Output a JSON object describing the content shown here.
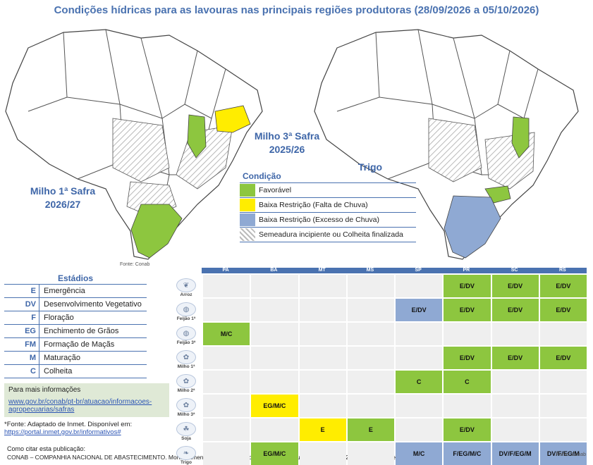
{
  "title": "Condições hídricas para as lavouras nas principais regiões produtoras (28/09/2026 a 05/10/2026)",
  "maps": {
    "left_label_1": "Milho 1ª Safra",
    "left_label_2": "2026/27",
    "center_label_1": "Milho 3ª Safra",
    "center_label_2": "2025/26",
    "right_label": "Trigo",
    "fonte": "Fonte: Conab"
  },
  "legend": {
    "title": "Condição",
    "items": [
      {
        "label": "Favorável",
        "color": "#8dc63f"
      },
      {
        "label": "Baixa Restrição (Falta de Chuva)",
        "color": "#ffed00"
      },
      {
        "label": "Baixa Restrição (Excesso de Chuva)",
        "color": "#8fa9d3"
      },
      {
        "label": "Semeadura incipiente ou Colheita finalizada",
        "color": "hatch"
      }
    ]
  },
  "estadios": {
    "title": "Estádios",
    "items": [
      {
        "code": "E",
        "desc": "Emergência"
      },
      {
        "code": "DV",
        "desc": "Desenvolvimento Vegetativo"
      },
      {
        "code": "F",
        "desc": "Floração"
      },
      {
        "code": "EG",
        "desc": "Enchimento de Grãos"
      },
      {
        "code": "FM",
        "desc": "Formação de Maçãs"
      },
      {
        "code": "M",
        "desc": "Maturação"
      },
      {
        "code": "C",
        "desc": "Colheita"
      }
    ]
  },
  "info": {
    "heading": "Para mais informações",
    "link1": "www.gov.br/conab/pt-br/atuacao/informacoes-",
    "link2": "agropecuarias/safras"
  },
  "footnote": {
    "text": "*Fonte: Adaptado de Inmet. Disponível em:",
    "link": "https://portal.inmet.gov.br/informativos#"
  },
  "cite": "Como citar esta publicação:",
  "credit": "CONAB – COMPANHIA NACIONAL DE ABASTECIMENTO. Monitoramento semanal das condições das lavouras. Brasília, DF, 28 de setembro de 2026.",
  "grid": {
    "states": [
      "PA",
      "BA",
      "MT",
      "MS",
      "SP",
      "PR",
      "SC",
      "RS"
    ],
    "fonte": "Fonte: Conab",
    "rows": [
      {
        "crop": "Arroz",
        "icon": "rice-icon",
        "cells": [
          null,
          null,
          null,
          null,
          null,
          {
            "t": "E/DV",
            "c": "g"
          },
          {
            "t": "E/DV",
            "c": "g"
          },
          {
            "t": "E/DV",
            "c": "g"
          }
        ]
      },
      {
        "crop": "Feijão 1ª",
        "icon": "bean-icon",
        "cells": [
          null,
          null,
          null,
          null,
          {
            "t": "E/DV",
            "c": "b"
          },
          {
            "t": "E/DV",
            "c": "g"
          },
          {
            "t": "E/DV",
            "c": "g"
          },
          {
            "t": "E/DV",
            "c": "g"
          }
        ]
      },
      {
        "crop": "Feijão 3ª",
        "icon": "bean-icon",
        "cells": [
          {
            "t": "M/C",
            "c": "g"
          },
          null,
          null,
          null,
          null,
          null,
          null,
          null
        ]
      },
      {
        "crop": "Milho 1ª",
        "icon": "corn-icon",
        "cells": [
          null,
          null,
          null,
          null,
          null,
          {
            "t": "E/DV",
            "c": "g"
          },
          {
            "t": "E/DV",
            "c": "g"
          },
          {
            "t": "E/DV",
            "c": "g"
          }
        ]
      },
      {
        "crop": "Milho 2ª",
        "icon": "corn-icon",
        "cells": [
          null,
          null,
          null,
          null,
          {
            "t": "C",
            "c": "g"
          },
          {
            "t": "C",
            "c": "g"
          },
          null,
          null
        ]
      },
      {
        "crop": "Milho 3ª",
        "icon": "corn-icon",
        "cells": [
          null,
          {
            "t": "EG/M/C",
            "c": "y"
          },
          null,
          null,
          null,
          null,
          null,
          null
        ]
      },
      {
        "crop": "Soja",
        "icon": "soy-icon",
        "cells": [
          null,
          null,
          {
            "t": "E",
            "c": "y"
          },
          {
            "t": "E",
            "c": "g"
          },
          null,
          {
            "t": "E/DV",
            "c": "g"
          },
          null,
          null
        ]
      },
      {
        "crop": "Trigo",
        "icon": "wheat-icon",
        "cells": [
          null,
          {
            "t": "EG/M/C",
            "c": "g"
          },
          null,
          null,
          {
            "t": "M/C",
            "c": "b"
          },
          {
            "t": "F/EG/M/C",
            "c": "b"
          },
          {
            "t": "DV/F/EG/M",
            "c": "b"
          },
          {
            "t": "DV/F/EG/M",
            "c": "b"
          }
        ]
      }
    ]
  }
}
